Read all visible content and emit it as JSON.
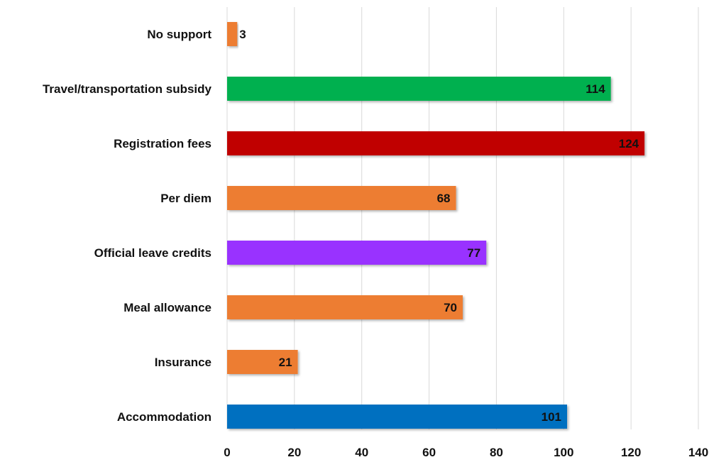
{
  "chart_data": {
    "type": "bar",
    "orientation": "horizontal",
    "categories": [
      "No support",
      "Travel/transportation subsidy",
      "Registration fees",
      "Per diem",
      "Official leave credits",
      "Meal allowance",
      "Insurance",
      "Accommodation"
    ],
    "values": [
      3,
      114,
      124,
      68,
      77,
      70,
      21,
      101
    ],
    "colors": [
      "#ed7d31",
      "#00b050",
      "#c00000",
      "#ed7d31",
      "#9933ff",
      "#ed7d31",
      "#ed7d31",
      "#0070c0"
    ],
    "xlim": [
      0,
      140
    ],
    "xticks": [
      0,
      20,
      40,
      60,
      80,
      100,
      120,
      140
    ],
    "grid": true,
    "data_labels": true
  }
}
